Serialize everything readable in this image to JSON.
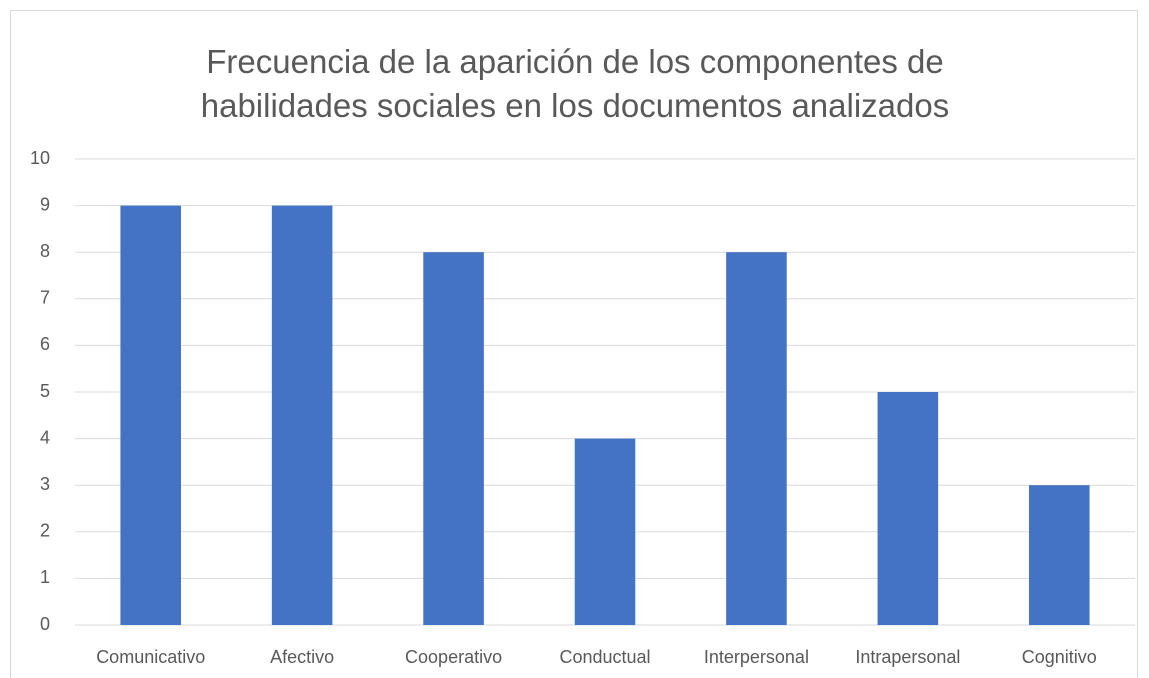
{
  "chart_data": {
    "type": "bar",
    "title": "Frecuencia de la aparición de los componentes de habilidades sociales en los documentos analizados",
    "categories": [
      "Comunicativo",
      "Afectivo",
      "Cooperativo",
      "Conductual",
      "Interpersonal",
      "Intrapersonal",
      "Cognitivo"
    ],
    "values": [
      9,
      9,
      8,
      4,
      8,
      5,
      3
    ],
    "color": "#4472c4",
    "ylim": [
      0,
      10
    ],
    "yticks": [
      0,
      1,
      2,
      3,
      4,
      5,
      6,
      7,
      8,
      9,
      10
    ],
    "grid": true
  }
}
